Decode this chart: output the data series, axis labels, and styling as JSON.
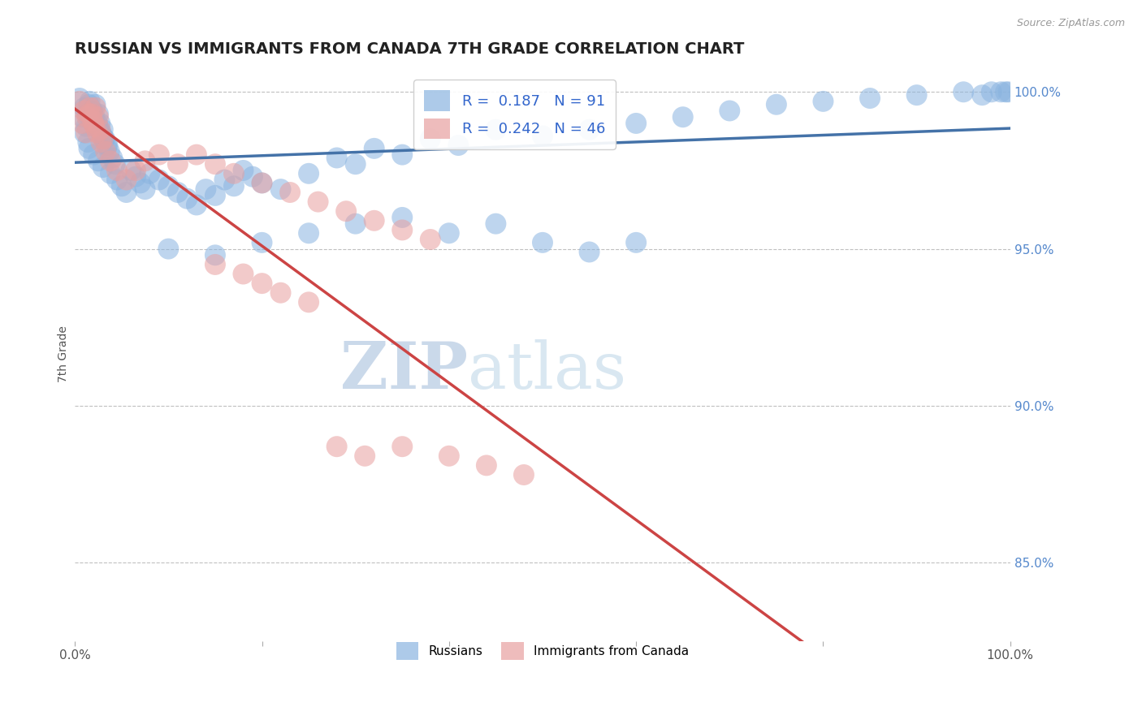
{
  "title": "RUSSIAN VS IMMIGRANTS FROM CANADA 7TH GRADE CORRELATION CHART",
  "source_text": "Source: ZipAtlas.com",
  "ylabel": "7th Grade",
  "watermark_zip": "ZIP",
  "watermark_atlas": "atlas",
  "xlim": [
    0.0,
    1.0
  ],
  "ylim": [
    0.825,
    1.008
  ],
  "yticks": [
    0.85,
    0.9,
    0.95,
    1.0
  ],
  "ytick_labels": [
    "85.0%",
    "90.0%",
    "95.0%",
    "100.0%"
  ],
  "blue_R": 0.187,
  "blue_N": 91,
  "pink_R": 0.242,
  "pink_N": 46,
  "blue_color": "#8ab4e0",
  "pink_color": "#e8a0a0",
  "blue_line_color": "#4472a8",
  "pink_line_color": "#cc4444",
  "background_color": "#ffffff",
  "grid_color": "#c0c0c0",
  "title_fontsize": 14,
  "legend_label_blue": "Russians",
  "legend_label_pink": "Immigrants from Canada",
  "blue_x": [
    0.005,
    0.01,
    0.013,
    0.016,
    0.018,
    0.02,
    0.022,
    0.025,
    0.027,
    0.03,
    0.008,
    0.012,
    0.015,
    0.019,
    0.021,
    0.024,
    0.026,
    0.029,
    0.032,
    0.035,
    0.01,
    0.014,
    0.017,
    0.023,
    0.028,
    0.031,
    0.034,
    0.037,
    0.04,
    0.043,
    0.015,
    0.02,
    0.025,
    0.03,
    0.038,
    0.045,
    0.05,
    0.055,
    0.06,
    0.065,
    0.07,
    0.075,
    0.08,
    0.09,
    0.1,
    0.11,
    0.12,
    0.13,
    0.14,
    0.15,
    0.16,
    0.17,
    0.18,
    0.19,
    0.2,
    0.22,
    0.25,
    0.28,
    0.3,
    0.32,
    0.35,
    0.38,
    0.41,
    0.45,
    0.5,
    0.55,
    0.6,
    0.65,
    0.7,
    0.75,
    0.8,
    0.85,
    0.9,
    0.95,
    0.97,
    0.98,
    0.99,
    0.995,
    0.998,
    0.1,
    0.15,
    0.2,
    0.25,
    0.3,
    0.35,
    0.4,
    0.45,
    0.5,
    0.55,
    0.6
  ],
  "blue_y": [
    0.998,
    0.995,
    0.993,
    0.997,
    0.994,
    0.991,
    0.996,
    0.993,
    0.99,
    0.988,
    0.992,
    0.989,
    0.996,
    0.994,
    0.992,
    0.99,
    0.988,
    0.986,
    0.985,
    0.983,
    0.987,
    0.984,
    0.991,
    0.989,
    0.987,
    0.985,
    0.983,
    0.981,
    0.979,
    0.977,
    0.982,
    0.98,
    0.978,
    0.976,
    0.974,
    0.972,
    0.97,
    0.968,
    0.975,
    0.973,
    0.971,
    0.969,
    0.974,
    0.972,
    0.97,
    0.968,
    0.966,
    0.964,
    0.969,
    0.967,
    0.972,
    0.97,
    0.975,
    0.973,
    0.971,
    0.969,
    0.974,
    0.979,
    0.977,
    0.982,
    0.98,
    0.985,
    0.983,
    0.988,
    0.986,
    0.988,
    0.99,
    0.992,
    0.994,
    0.996,
    0.997,
    0.998,
    0.999,
    1.0,
    0.999,
    1.0,
    1.0,
    1.0,
    1.0,
    0.95,
    0.948,
    0.952,
    0.955,
    0.958,
    0.96,
    0.955,
    0.958,
    0.952,
    0.949,
    0.952
  ],
  "pink_x": [
    0.005,
    0.01,
    0.013,
    0.016,
    0.018,
    0.02,
    0.022,
    0.025,
    0.027,
    0.03,
    0.008,
    0.012,
    0.015,
    0.019,
    0.021,
    0.024,
    0.028,
    0.033,
    0.038,
    0.045,
    0.055,
    0.065,
    0.075,
    0.09,
    0.11,
    0.13,
    0.15,
    0.17,
    0.2,
    0.23,
    0.26,
    0.29,
    0.32,
    0.35,
    0.38,
    0.15,
    0.18,
    0.2,
    0.22,
    0.25,
    0.28,
    0.31,
    0.35,
    0.4,
    0.44,
    0.48
  ],
  "pink_y": [
    0.997,
    0.994,
    0.992,
    0.995,
    0.993,
    0.99,
    0.995,
    0.992,
    0.988,
    0.985,
    0.99,
    0.987,
    0.993,
    0.991,
    0.989,
    0.987,
    0.984,
    0.981,
    0.978,
    0.975,
    0.972,
    0.975,
    0.978,
    0.98,
    0.977,
    0.98,
    0.977,
    0.974,
    0.971,
    0.968,
    0.965,
    0.962,
    0.959,
    0.956,
    0.953,
    0.945,
    0.942,
    0.939,
    0.936,
    0.933,
    0.887,
    0.884,
    0.887,
    0.884,
    0.881,
    0.878
  ]
}
